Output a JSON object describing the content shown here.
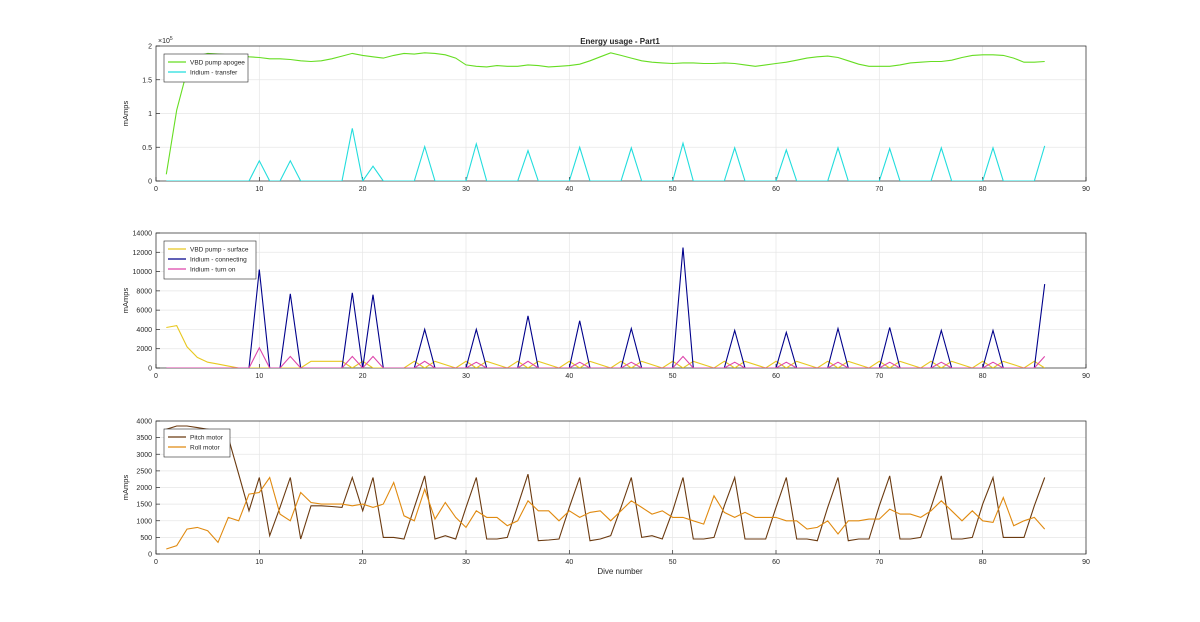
{
  "figure": {
    "title": "Energy usage - Part1",
    "xlabel": "Dive number"
  },
  "chart_data": [
    {
      "type": "line",
      "title": "Energy usage - Part1",
      "xlabel": "",
      "ylabel": "mAmps",
      "xlim": [
        0,
        90
      ],
      "ylim": [
        0,
        200000
      ],
      "xticks": [
        "0",
        "10",
        "20",
        "30",
        "40",
        "50",
        "60",
        "70",
        "80",
        "90"
      ],
      "yticks": [
        "0",
        "0.5",
        "1",
        "1.5",
        "2"
      ],
      "exponent_label": "×10",
      "exponent_power": "5",
      "grid": true,
      "legend": "top-left",
      "series": [
        {
          "name": "VBD pump apogee",
          "color": "#66dd22",
          "x": [
            1,
            2,
            3,
            4,
            5,
            6,
            7,
            8,
            9,
            10,
            11,
            12,
            13,
            14,
            15,
            16,
            17,
            18,
            19,
            20,
            21,
            22,
            23,
            24,
            25,
            26,
            27,
            28,
            29,
            30,
            31,
            32,
            33,
            34,
            35,
            36,
            37,
            38,
            39,
            40,
            41,
            42,
            43,
            44,
            45,
            46,
            47,
            48,
            49,
            50,
            51,
            52,
            53,
            54,
            55,
            56,
            57,
            58,
            59,
            60,
            61,
            62,
            63,
            64,
            65,
            66,
            67,
            68,
            69,
            70,
            71,
            72,
            73,
            74,
            75,
            76,
            77,
            78,
            79,
            80,
            81,
            82,
            83,
            84,
            85,
            86
          ],
          "values": [
            10000,
            105000,
            163000,
            185000,
            189000,
            188000,
            187000,
            186000,
            184000,
            183000,
            181000,
            181000,
            180000,
            178000,
            177000,
            178000,
            181000,
            185000,
            189000,
            186000,
            184000,
            182000,
            186000,
            189000,
            188000,
            190000,
            189000,
            187000,
            182000,
            172000,
            170000,
            169000,
            171000,
            170000,
            170000,
            172000,
            171000,
            169000,
            170000,
            171000,
            173000,
            178000,
            184000,
            190000,
            186000,
            182000,
            178000,
            176000,
            175000,
            174000,
            175000,
            175000,
            174000,
            174000,
            175000,
            174000,
            172000,
            170000,
            172000,
            174000,
            176000,
            179000,
            182000,
            184000,
            185000,
            183000,
            178000,
            173000,
            170000,
            170000,
            170000,
            172000,
            175000,
            176000,
            177000,
            177000,
            179000,
            183000,
            186000,
            187000,
            187000,
            186000,
            182000,
            176000,
            176000,
            177000
          ]
        },
        {
          "name": "Iridium - transfer",
          "color": "#22dddd",
          "x": [
            1,
            9,
            10,
            11,
            12,
            13,
            14,
            18,
            19,
            20,
            21,
            22,
            25,
            26,
            27,
            30,
            31,
            32,
            35,
            36,
            37,
            40,
            41,
            42,
            45,
            46,
            47,
            50,
            51,
            52,
            55,
            56,
            57,
            60,
            61,
            62,
            65,
            66,
            67,
            70,
            71,
            72,
            75,
            76,
            77,
            80,
            81,
            82,
            85,
            86
          ],
          "values": [
            0,
            0,
            30000,
            0,
            0,
            30000,
            0,
            0,
            78000,
            0,
            22000,
            0,
            0,
            51000,
            0,
            0,
            55000,
            0,
            0,
            45000,
            0,
            0,
            50000,
            0,
            0,
            49000,
            0,
            0,
            56000,
            0,
            0,
            49000,
            0,
            0,
            46000,
            0,
            0,
            49000,
            0,
            0,
            48000,
            0,
            0,
            49000,
            0,
            0,
            49000,
            0,
            0,
            52000
          ]
        }
      ]
    },
    {
      "type": "line",
      "title": "",
      "xlabel": "",
      "ylabel": "mAmps",
      "xlim": [
        0,
        90
      ],
      "ylim": [
        0,
        14000
      ],
      "xticks": [
        "0",
        "10",
        "20",
        "30",
        "40",
        "50",
        "60",
        "70",
        "80",
        "90"
      ],
      "yticks": [
        "0",
        "2000",
        "4000",
        "6000",
        "8000",
        "10000",
        "12000",
        "14000"
      ],
      "grid": true,
      "legend": "top-left",
      "series": [
        {
          "name": "VBD pump - surface",
          "color": "#e8c820",
          "x": [
            1,
            2,
            3,
            4,
            5,
            6,
            7,
            8,
            9,
            10,
            11,
            14,
            15,
            18,
            19,
            20,
            21,
            22,
            24,
            25,
            26,
            27,
            29,
            30,
            31,
            32,
            34,
            35,
            36,
            37,
            39,
            40,
            41,
            42,
            44,
            45,
            46,
            47,
            49,
            50,
            51,
            52,
            54,
            55,
            56,
            57,
            59,
            60,
            61,
            62,
            64,
            65,
            66,
            67,
            69,
            70,
            71,
            72,
            74,
            75,
            76,
            77,
            79,
            80,
            81,
            82,
            84,
            85,
            86
          ],
          "values": [
            4200,
            4400,
            2200,
            1100,
            600,
            400,
            200,
            0,
            0,
            0,
            0,
            0,
            700,
            700,
            0,
            700,
            0,
            0,
            0,
            700,
            0,
            700,
            0,
            700,
            0,
            700,
            0,
            700,
            0,
            700,
            0,
            700,
            0,
            700,
            0,
            700,
            0,
            700,
            0,
            700,
            0,
            700,
            0,
            700,
            0,
            700,
            0,
            700,
            0,
            700,
            0,
            700,
            0,
            700,
            0,
            700,
            0,
            700,
            0,
            700,
            0,
            700,
            0,
            700,
            0,
            700,
            0,
            700,
            0
          ]
        },
        {
          "name": "Iridium - connecting",
          "color": "#00008b",
          "x": [
            1,
            9,
            10,
            11,
            12,
            13,
            14,
            18,
            19,
            20,
            21,
            22,
            25,
            26,
            27,
            30,
            31,
            32,
            35,
            36,
            37,
            40,
            41,
            42,
            45,
            46,
            47,
            50,
            51,
            52,
            55,
            56,
            57,
            60,
            61,
            62,
            65,
            66,
            67,
            70,
            71,
            72,
            75,
            76,
            77,
            80,
            81,
            82,
            85,
            86
          ],
          "values": [
            0,
            0,
            10200,
            0,
            0,
            7700,
            0,
            0,
            7800,
            0,
            7600,
            0,
            0,
            4000,
            0,
            0,
            4000,
            0,
            0,
            5400,
            0,
            0,
            4900,
            0,
            0,
            4100,
            0,
            0,
            12500,
            0,
            0,
            3900,
            0,
            0,
            3700,
            0,
            0,
            4100,
            0,
            0,
            4200,
            0,
            0,
            3900,
            0,
            0,
            3900,
            0,
            0,
            8700
          ]
        },
        {
          "name": "Iridium - turn on",
          "color": "#dd44aa",
          "x": [
            1,
            9,
            10,
            11,
            12,
            13,
            14,
            18,
            19,
            20,
            21,
            22,
            25,
            26,
            27,
            30,
            31,
            32,
            35,
            36,
            37,
            40,
            41,
            42,
            45,
            46,
            47,
            50,
            51,
            52,
            55,
            56,
            57,
            60,
            61,
            62,
            65,
            66,
            67,
            70,
            71,
            72,
            75,
            76,
            77,
            80,
            81,
            82,
            85,
            86
          ],
          "values": [
            0,
            0,
            2100,
            0,
            0,
            1200,
            0,
            0,
            1200,
            0,
            1200,
            0,
            0,
            700,
            0,
            0,
            600,
            0,
            0,
            700,
            0,
            0,
            600,
            0,
            0,
            600,
            0,
            0,
            1200,
            0,
            0,
            600,
            0,
            0,
            600,
            0,
            0,
            600,
            0,
            0,
            600,
            0,
            0,
            600,
            0,
            0,
            600,
            0,
            0,
            1200
          ]
        }
      ]
    },
    {
      "type": "line",
      "title": "",
      "xlabel": "Dive number",
      "ylabel": "mAmps",
      "xlim": [
        0,
        90
      ],
      "ylim": [
        0,
        4000
      ],
      "xticks": [
        "0",
        "10",
        "20",
        "30",
        "40",
        "50",
        "60",
        "70",
        "80",
        "90"
      ],
      "yticks": [
        "0",
        "500",
        "1000",
        "1500",
        "2000",
        "2500",
        "3000",
        "3500",
        "4000"
      ],
      "grid": true,
      "legend": "top-left",
      "series": [
        {
          "name": "Pitch motor",
          "color": "#6b3a10",
          "x": [
            1,
            2,
            3,
            4,
            5,
            6,
            7,
            8,
            9,
            10,
            11,
            12,
            13,
            14,
            15,
            16,
            17,
            18,
            19,
            20,
            21,
            22,
            23,
            24,
            25,
            26,
            27,
            28,
            29,
            30,
            31,
            32,
            33,
            34,
            35,
            36,
            37,
            38,
            39,
            40,
            41,
            42,
            43,
            44,
            45,
            46,
            47,
            48,
            49,
            50,
            51,
            52,
            53,
            54,
            55,
            56,
            57,
            58,
            59,
            60,
            61,
            62,
            63,
            64,
            65,
            66,
            67,
            68,
            69,
            70,
            71,
            72,
            73,
            74,
            75,
            76,
            77,
            78,
            79,
            80,
            81,
            82,
            83,
            84,
            85,
            86
          ],
          "values": [
            3750,
            3850,
            3850,
            3800,
            3750,
            3700,
            3500,
            2400,
            1300,
            2300,
            550,
            1400,
            2300,
            450,
            1450,
            1450,
            1430,
            1400,
            2300,
            1300,
            2300,
            500,
            500,
            450,
            1400,
            2350,
            450,
            550,
            450,
            1400,
            2300,
            450,
            450,
            500,
            1450,
            2400,
            400,
            420,
            450,
            1400,
            2300,
            400,
            450,
            550,
            1400,
            2300,
            500,
            550,
            450,
            1300,
            2300,
            450,
            450,
            500,
            1450,
            2300,
            450,
            450,
            450,
            1400,
            2300,
            450,
            450,
            400,
            1400,
            2300,
            400,
            450,
            450,
            1450,
            2350,
            450,
            450,
            500,
            1400,
            2350,
            450,
            450,
            500,
            1500,
            2300,
            500,
            500,
            500,
            1450,
            2300
          ]
        },
        {
          "name": "Roll motor",
          "color": "#e08a10",
          "x": [
            1,
            2,
            3,
            4,
            5,
            6,
            7,
            8,
            9,
            10,
            11,
            12,
            13,
            14,
            15,
            16,
            17,
            18,
            19,
            20,
            21,
            22,
            23,
            24,
            25,
            26,
            27,
            28,
            29,
            30,
            31,
            32,
            33,
            34,
            35,
            36,
            37,
            38,
            39,
            40,
            41,
            42,
            43,
            44,
            45,
            46,
            47,
            48,
            49,
            50,
            51,
            52,
            53,
            54,
            55,
            56,
            57,
            58,
            59,
            60,
            61,
            62,
            63,
            64,
            65,
            66,
            67,
            68,
            69,
            70,
            71,
            72,
            73,
            74,
            75,
            76,
            77,
            78,
            79,
            80,
            81,
            82,
            83,
            84,
            85,
            86
          ],
          "values": [
            150,
            250,
            750,
            800,
            700,
            350,
            1100,
            1000,
            1800,
            1850,
            2300,
            1200,
            1000,
            1850,
            1550,
            1500,
            1500,
            1500,
            1450,
            1500,
            1400,
            1500,
            2150,
            1150,
            1000,
            1950,
            1050,
            1550,
            1100,
            800,
            1300,
            1100,
            1100,
            850,
            1000,
            1600,
            1300,
            1300,
            1000,
            1300,
            1100,
            1250,
            1300,
            1000,
            1300,
            1600,
            1400,
            1200,
            1300,
            1100,
            1100,
            1000,
            900,
            1750,
            1250,
            1100,
            1250,
            1100,
            1100,
            1100,
            1000,
            1000,
            750,
            800,
            1000,
            600,
            1000,
            1000,
            1050,
            1050,
            1350,
            1200,
            1200,
            1100,
            1300,
            1600,
            1300,
            1000,
            1300,
            1000,
            950,
            1700,
            850,
            1000,
            1100,
            750
          ]
        }
      ]
    }
  ]
}
